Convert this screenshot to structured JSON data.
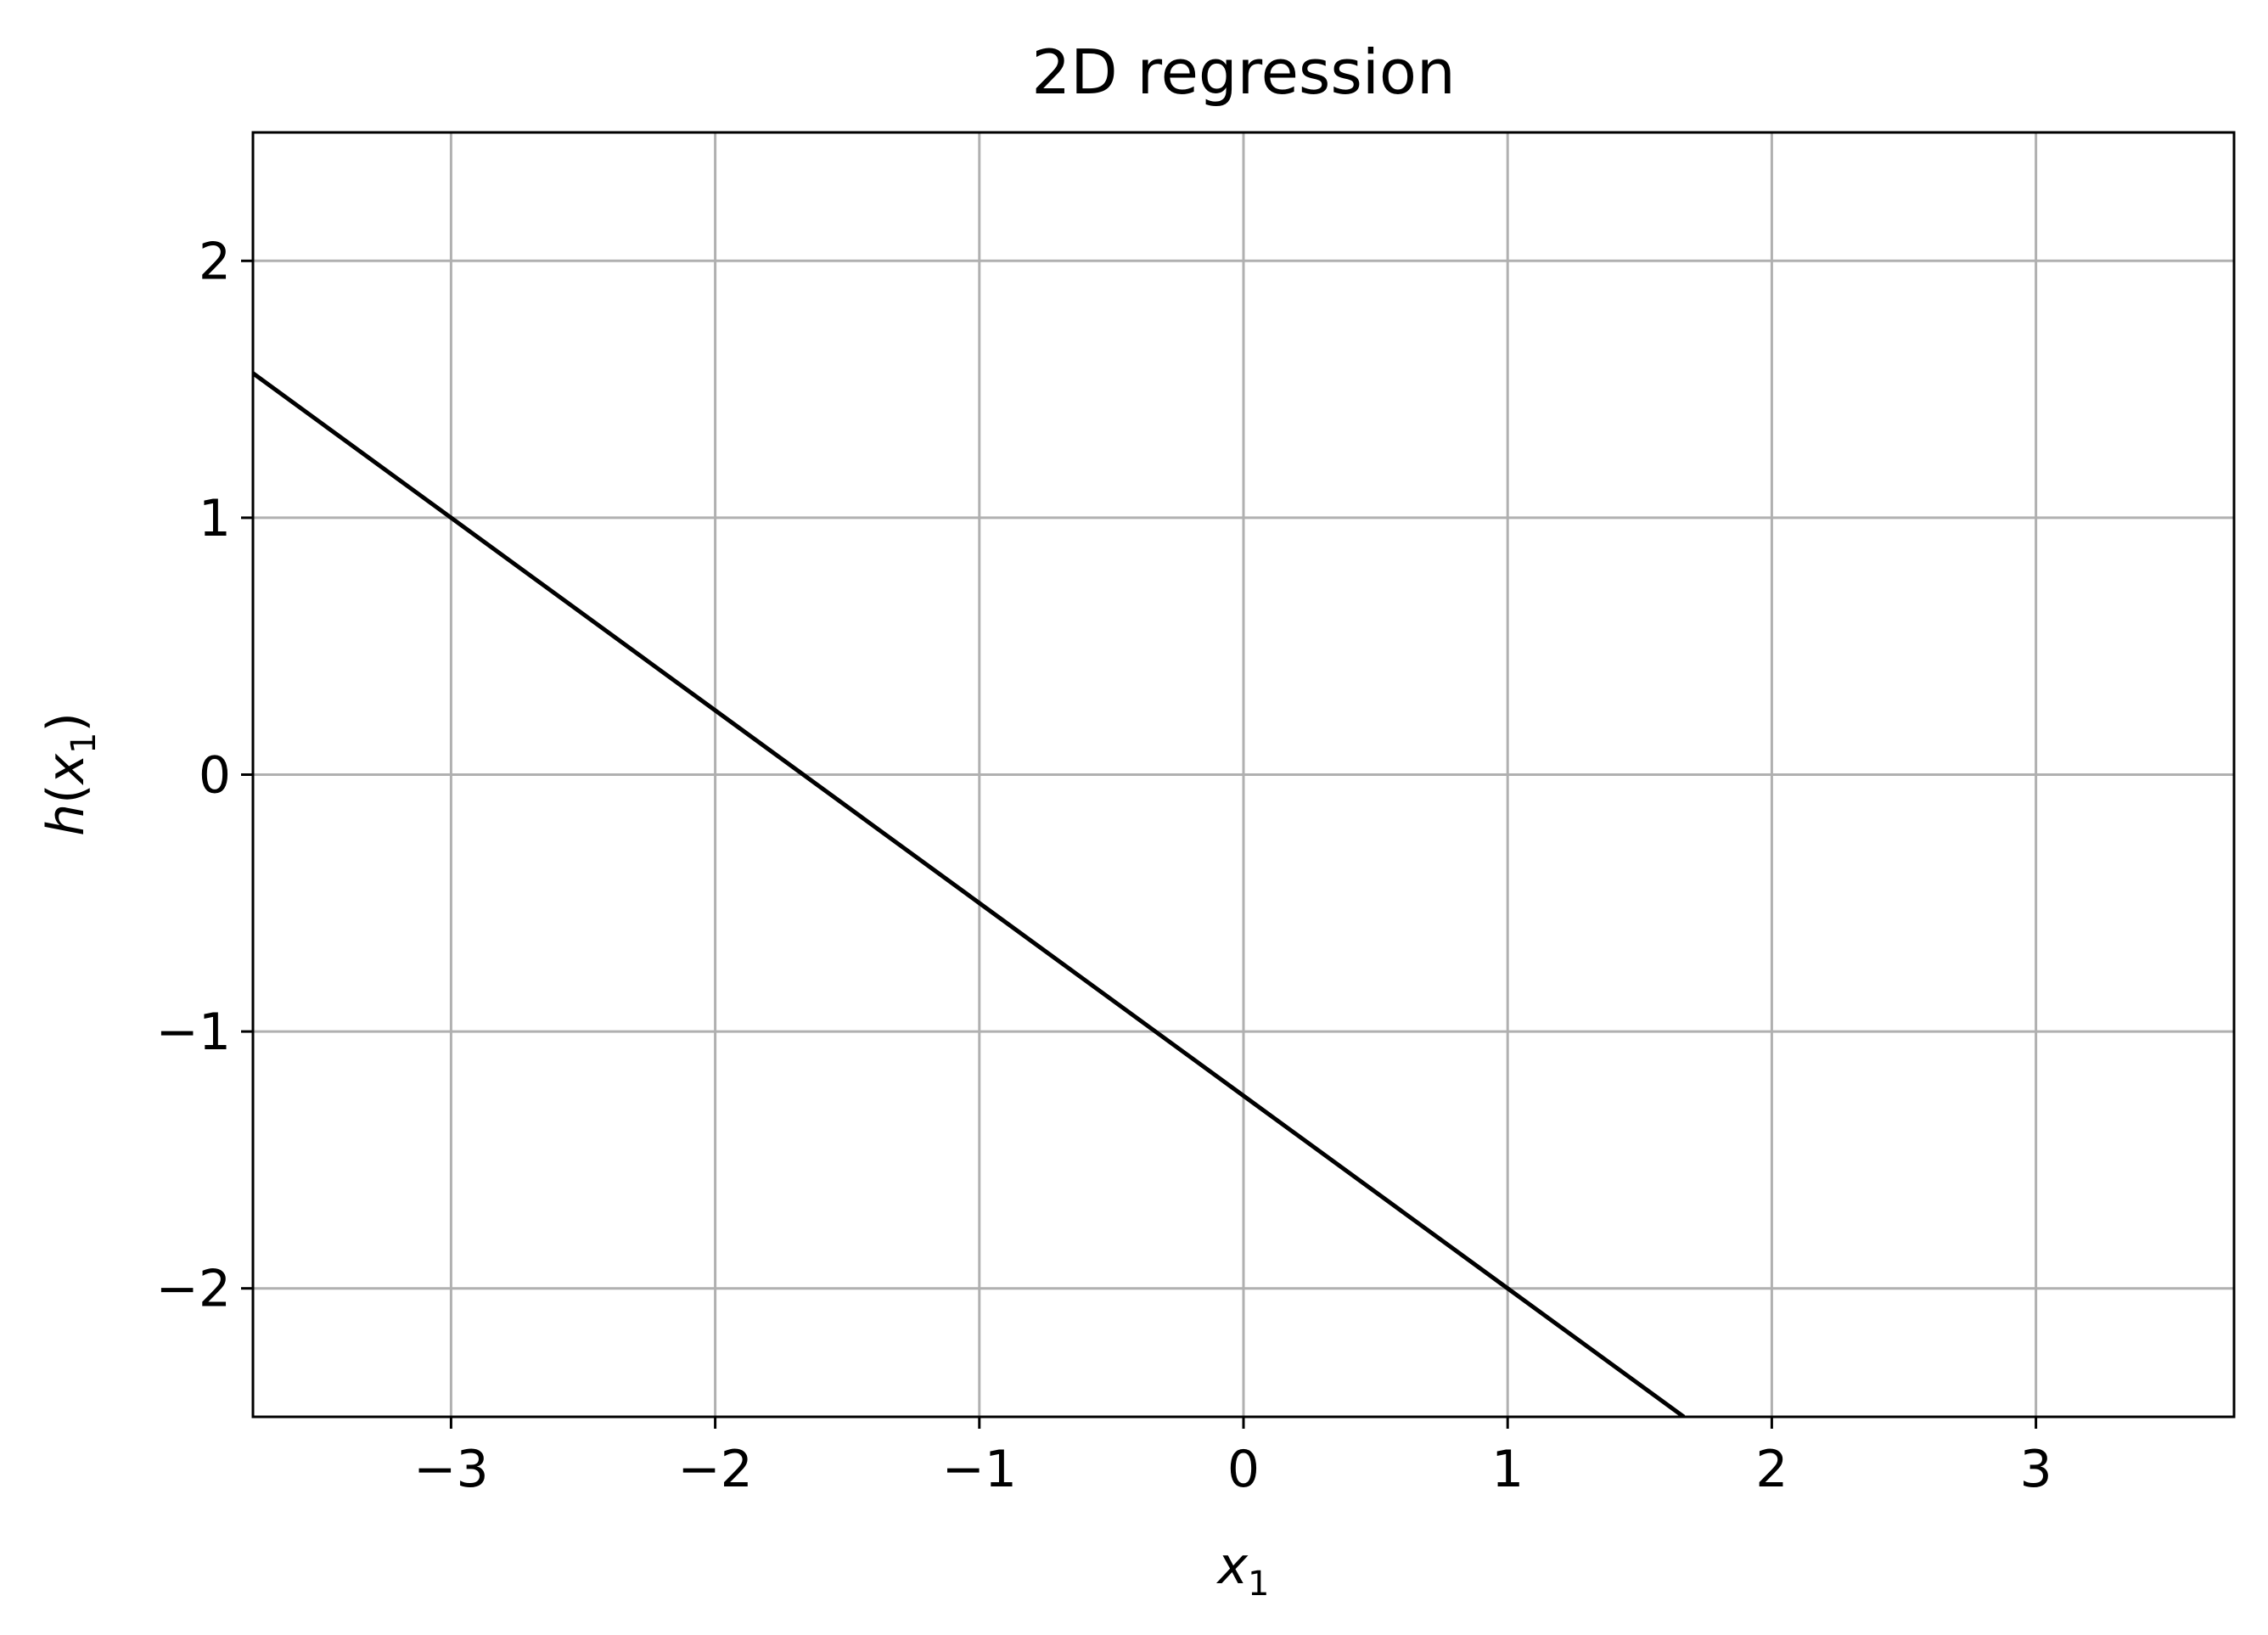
{
  "chart_data": {
    "type": "line",
    "title": "2D regression",
    "xlabel": {
      "main": "x",
      "sub": "1"
    },
    "ylabel": {
      "func": "h",
      "open": "(",
      "var": "x",
      "sub": "1",
      "close": ")"
    },
    "xlim": [
      -3.75,
      3.75
    ],
    "ylim": [
      -2.5,
      2.5
    ],
    "xticks": [
      -3,
      -2,
      -1,
      0,
      1,
      2,
      3
    ],
    "yticks": [
      -2,
      -1,
      0,
      1,
      2
    ],
    "xtick_labels": [
      "−3",
      "−2",
      "−1",
      "0",
      "1",
      "2",
      "3"
    ],
    "ytick_labels": [
      "−2",
      "−1",
      "0",
      "1",
      "2"
    ],
    "grid": true,
    "series": [
      {
        "color": "#000000",
        "x": [
          -3.75,
          -3,
          -2,
          -1,
          0,
          1,
          1.667
        ],
        "y": [
          1.5625,
          1.0,
          0.25,
          -0.5,
          -1.25,
          -2.0,
          -2.5
        ]
      }
    ]
  },
  "colors": {
    "grid": "#b0b0b0",
    "axes": "#000000",
    "line": "#000000"
  }
}
